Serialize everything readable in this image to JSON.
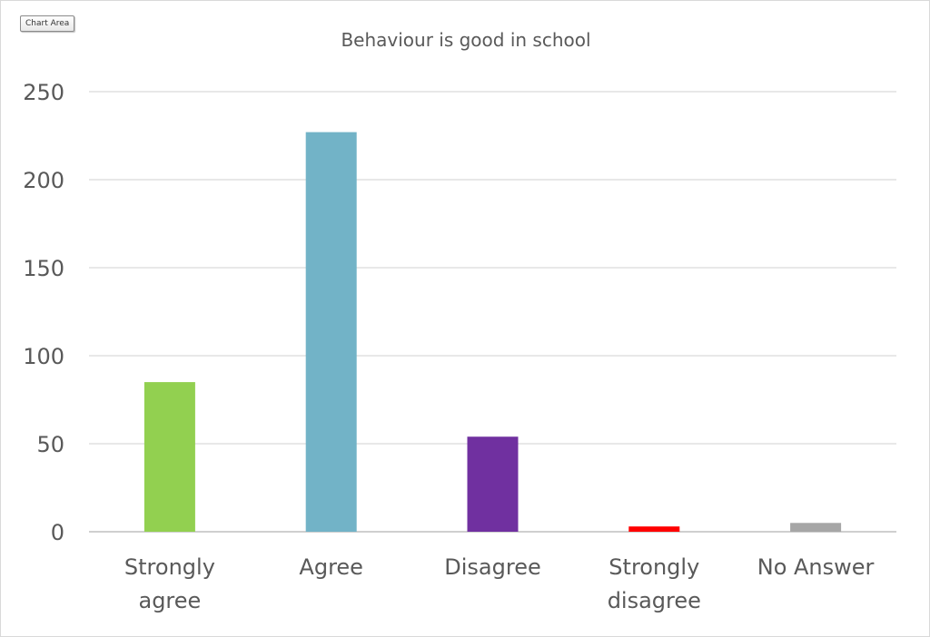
{
  "chart_area_label": "Chart Area",
  "chart_data": {
    "type": "bar",
    "title": "Behaviour is good in school",
    "xlabel": "",
    "ylabel": "",
    "ylim": [
      0,
      250
    ],
    "yticks": [
      "0",
      "50",
      "100",
      "150",
      "200",
      "250"
    ],
    "categories": [
      "Strongly agree",
      "Agree",
      "Disagree",
      "Strongly disagree",
      "No Answer"
    ],
    "category_label_lines": [
      [
        "Strongly",
        "agree"
      ],
      [
        "Agree"
      ],
      [
        "Disagree"
      ],
      [
        "Strongly",
        "disagree"
      ],
      [
        "No Answer"
      ]
    ],
    "values": [
      85,
      227,
      54,
      3,
      5
    ],
    "colors": [
      "#92d050",
      "#72b3c7",
      "#7030a0",
      "#ff0000",
      "#a6a6a6"
    ],
    "gridlines": true,
    "legend": "none"
  }
}
